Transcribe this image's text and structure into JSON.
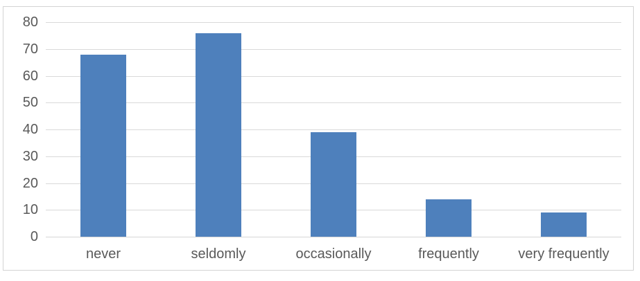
{
  "chart_data": {
    "type": "bar",
    "title": "",
    "xlabel": "",
    "ylabel": "",
    "categories": [
      "never",
      "seldomly",
      "occasionally",
      "frequently",
      "very frequently"
    ],
    "values": [
      68,
      76,
      39,
      14,
      9
    ],
    "ylim": [
      0,
      80
    ],
    "yticks": [
      0,
      10,
      20,
      30,
      40,
      50,
      60,
      70,
      80
    ],
    "ytick_labels": [
      "0",
      "10",
      "20",
      "30",
      "40",
      "50",
      "60",
      "70",
      "80"
    ],
    "grid": true,
    "legend": false,
    "colors": {
      "bar_fill": "#4e80bc",
      "gridline": "#d9d9d9",
      "axis_line": "#d6d6d6",
      "axis_text": "#595959",
      "frame_border": "#d3d3d3",
      "background": "#ffffff"
    }
  }
}
